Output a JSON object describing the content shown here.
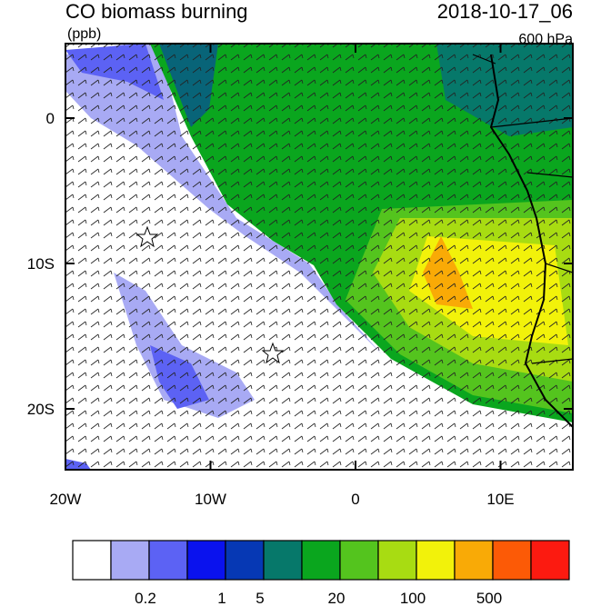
{
  "header": {
    "title": "CO biomass burning",
    "units": "(ppb)",
    "time": "2018-10-17_06",
    "level": "600 hPa"
  },
  "map": {
    "lon_ticks": [
      {
        "value": -20,
        "label": "20W"
      },
      {
        "value": -10,
        "label": "10W"
      },
      {
        "value": 0,
        "label": "0"
      },
      {
        "value": 10,
        "label": "10E"
      }
    ],
    "lat_ticks": [
      {
        "value": 0,
        "label": "0"
      },
      {
        "value": -10,
        "label": "10S"
      },
      {
        "value": -20,
        "label": "20S"
      }
    ]
  },
  "colorbar": {
    "colors": [
      "#ffffff",
      "#a8aaf4",
      "#5c62f4",
      "#0a12ee",
      "#0638b4",
      "#06786a",
      "#0aa61e",
      "#54c41e",
      "#a8dc12",
      "#f2f20a",
      "#f9aa06",
      "#fc5a06",
      "#fc1a10"
    ],
    "labels": [
      "0.2",
      "1",
      "5",
      "20",
      "100",
      "500"
    ]
  }
}
